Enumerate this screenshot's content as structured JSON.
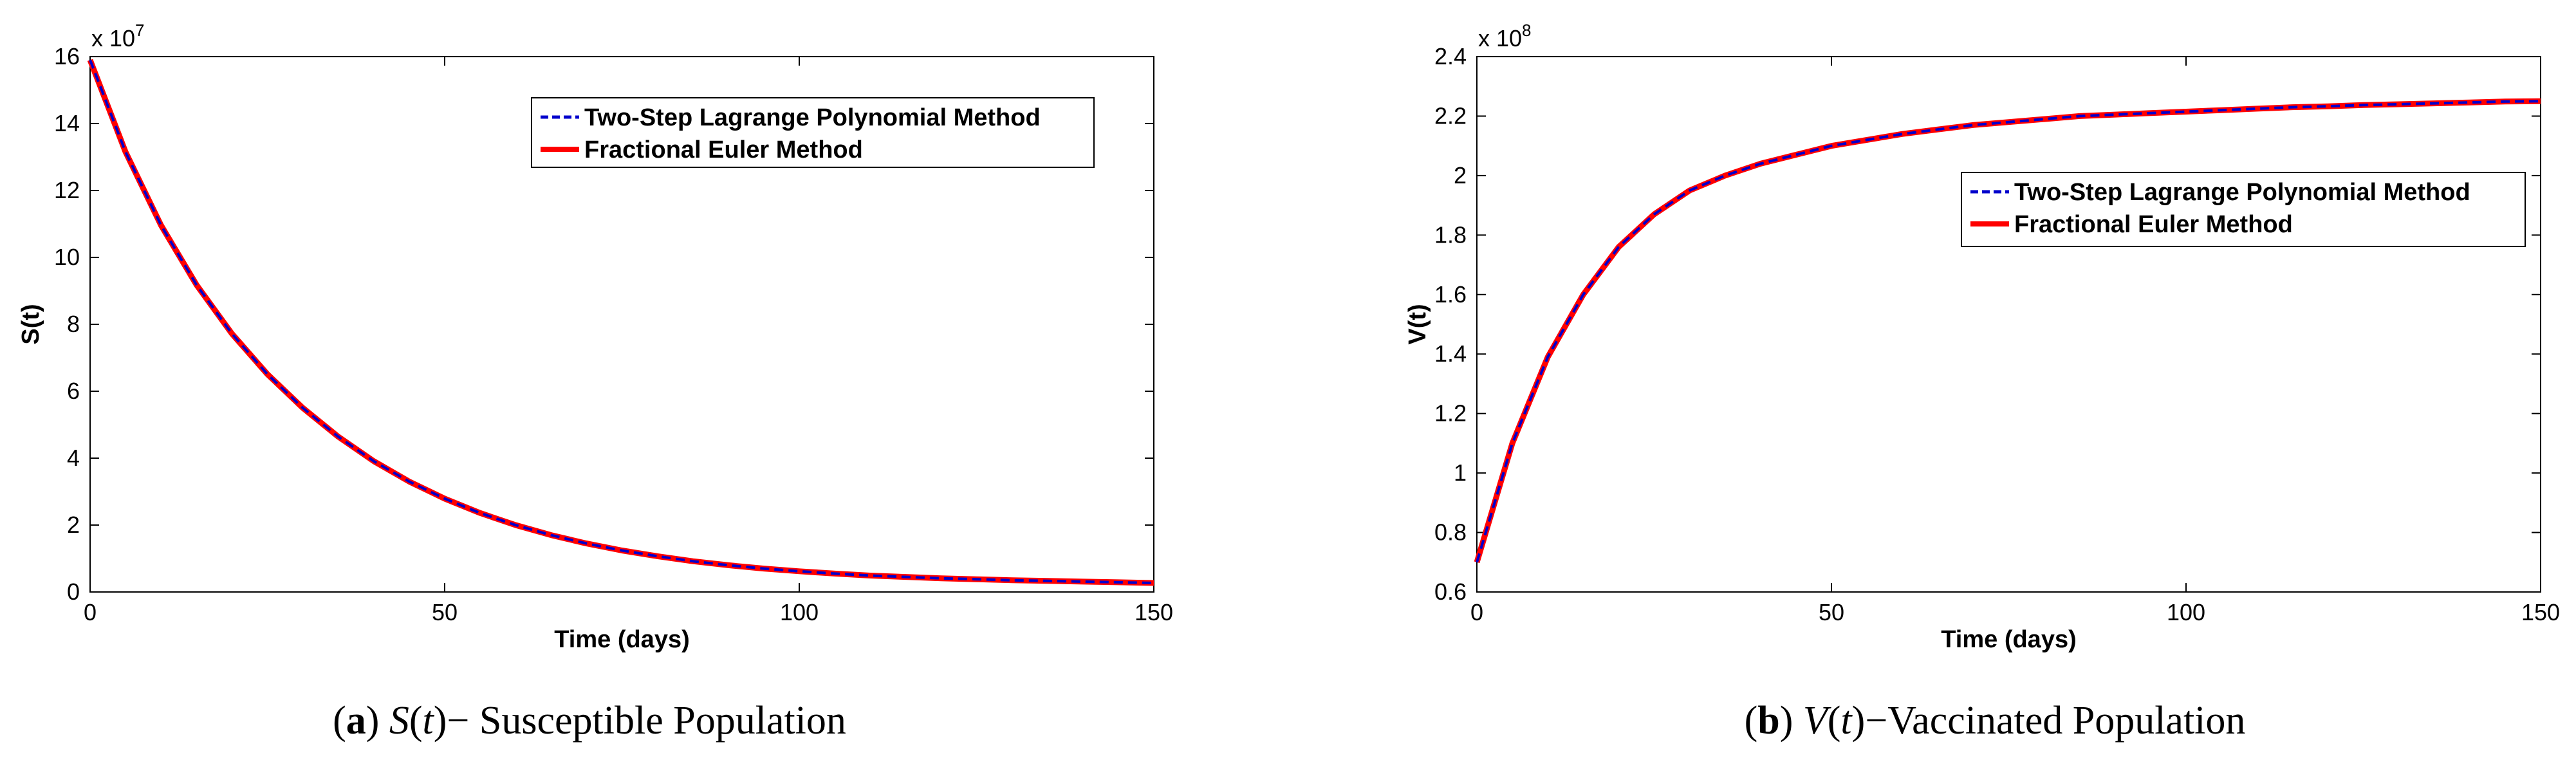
{
  "chart_data": [
    {
      "type": "line",
      "panel": "a",
      "caption": {
        "label": "a",
        "var": "S",
        "arg": "t",
        "dash": "−",
        "rest": " Susceptible Population"
      },
      "xlabel": "Time (days)",
      "ylabel": "S(t)",
      "xlim": [
        0,
        150
      ],
      "ylim": [
        0,
        16
      ],
      "xticks": [
        "0",
        "50",
        "100",
        "150"
      ],
      "yticks": [
        "0",
        "2",
        "4",
        "6",
        "8",
        "10",
        "12",
        "14",
        "16"
      ],
      "y_multiplier": {
        "base": "x 10",
        "exp": "7"
      },
      "grid": false,
      "legend": {
        "position": "top-right",
        "entries": [
          "Two-Step Lagrange Polynomial Method",
          "Fractional Euler Method"
        ]
      },
      "series": [
        {
          "name": "Two-Step Lagrange Polynomial Method",
          "color": "#0000cc",
          "style": "dashed",
          "x": [
            0,
            5,
            10,
            15,
            20,
            25,
            30,
            35,
            40,
            45,
            50,
            55,
            60,
            65,
            70,
            75,
            80,
            85,
            90,
            95,
            100,
            105,
            110,
            115,
            120,
            125,
            130,
            135,
            140,
            145,
            150
          ],
          "y": [
            15.9,
            13.15,
            10.96,
            9.18,
            7.72,
            6.51,
            5.5,
            4.64,
            3.91,
            3.3,
            2.79,
            2.36,
            2.0,
            1.7,
            1.45,
            1.24,
            1.07,
            0.92,
            0.8,
            0.7,
            0.62,
            0.55,
            0.49,
            0.45,
            0.41,
            0.38,
            0.35,
            0.33,
            0.31,
            0.29,
            0.27
          ]
        },
        {
          "name": "Fractional Euler Method",
          "color": "#ff0000",
          "style": "solid",
          "x": [
            0,
            5,
            10,
            15,
            20,
            25,
            30,
            35,
            40,
            45,
            50,
            55,
            60,
            65,
            70,
            75,
            80,
            85,
            90,
            95,
            100,
            105,
            110,
            115,
            120,
            125,
            130,
            135,
            140,
            145,
            150
          ],
          "y": [
            15.9,
            13.15,
            10.96,
            9.18,
            7.72,
            6.51,
            5.5,
            4.64,
            3.91,
            3.3,
            2.79,
            2.36,
            2.0,
            1.7,
            1.45,
            1.24,
            1.07,
            0.92,
            0.8,
            0.7,
            0.62,
            0.55,
            0.49,
            0.45,
            0.41,
            0.38,
            0.35,
            0.33,
            0.31,
            0.29,
            0.27
          ]
        }
      ]
    },
    {
      "type": "line",
      "panel": "b",
      "caption": {
        "label": "b",
        "var": "V",
        "arg": "t",
        "dash": "−",
        "rest": "Vaccinated Population"
      },
      "xlabel": "Time (days)",
      "ylabel": "V(t)",
      "xlim": [
        0,
        150
      ],
      "ylim": [
        0.6,
        2.4
      ],
      "xticks": [
        "0",
        "50",
        "100",
        "150"
      ],
      "yticks": [
        "0.6",
        "0.8",
        "1",
        "1.2",
        "1.4",
        "1.6",
        "1.8",
        "2",
        "2.2",
        "2.4"
      ],
      "y_multiplier": {
        "base": "x 10",
        "exp": "8"
      },
      "grid": false,
      "legend": {
        "position": "right",
        "entries": [
          "Two-Step Lagrange Polynomial Method",
          "Fractional Euler Method"
        ]
      },
      "series": [
        {
          "name": "Two-Step Lagrange Polynomial Method",
          "color": "#0000cc",
          "style": "dashed",
          "x": [
            0,
            5,
            10,
            15,
            20,
            25,
            30,
            35,
            40,
            45,
            50,
            55,
            60,
            65,
            70,
            75,
            80,
            85,
            90,
            95,
            100,
            105,
            110,
            115,
            120,
            125,
            130,
            135,
            140,
            145,
            150
          ],
          "y": [
            0.7,
            1.1,
            1.39,
            1.6,
            1.76,
            1.87,
            1.95,
            2.0,
            2.04,
            2.07,
            2.1,
            2.12,
            2.14,
            2.155,
            2.17,
            2.18,
            2.19,
            2.2,
            2.205,
            2.21,
            2.215,
            2.22,
            2.225,
            2.23,
            2.233,
            2.237,
            2.24,
            2.243,
            2.246,
            2.249,
            2.25
          ]
        },
        {
          "name": "Fractional Euler Method",
          "color": "#ff0000",
          "style": "solid",
          "x": [
            0,
            5,
            10,
            15,
            20,
            25,
            30,
            35,
            40,
            45,
            50,
            55,
            60,
            65,
            70,
            75,
            80,
            85,
            90,
            95,
            100,
            105,
            110,
            115,
            120,
            125,
            130,
            135,
            140,
            145,
            150
          ],
          "y": [
            0.7,
            1.1,
            1.39,
            1.6,
            1.76,
            1.87,
            1.95,
            2.0,
            2.04,
            2.07,
            2.1,
            2.12,
            2.14,
            2.155,
            2.17,
            2.18,
            2.19,
            2.2,
            2.205,
            2.21,
            2.215,
            2.22,
            2.225,
            2.23,
            2.233,
            2.237,
            2.24,
            2.243,
            2.246,
            2.249,
            2.25
          ]
        }
      ]
    }
  ]
}
